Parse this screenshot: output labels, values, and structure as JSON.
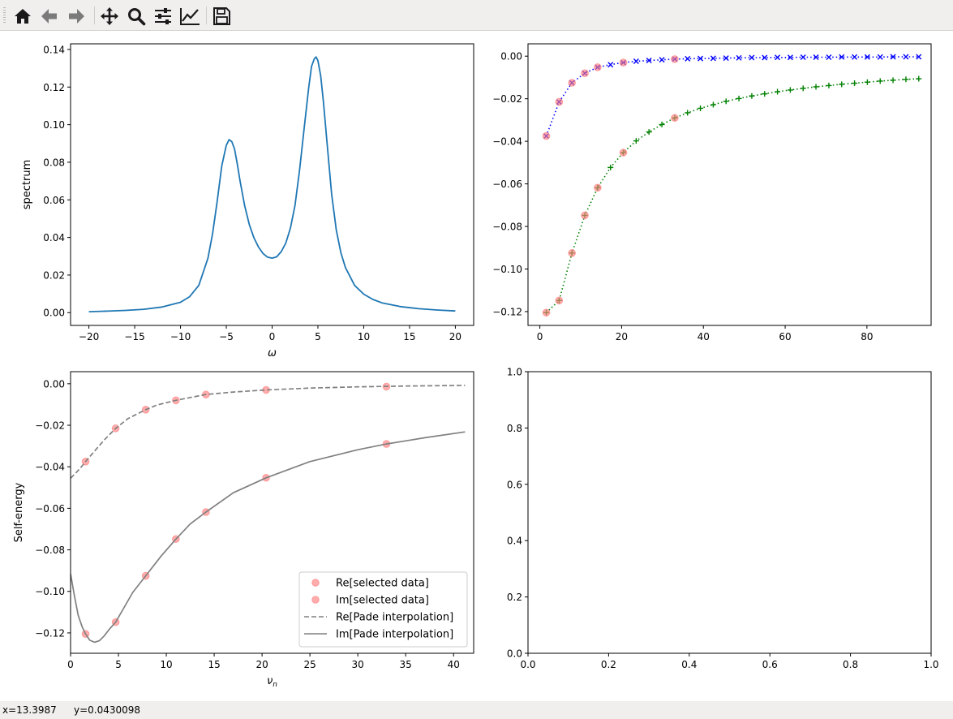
{
  "toolbar": {
    "buttons": [
      {
        "name": "home-icon"
      },
      {
        "name": "back-arrow-icon"
      },
      {
        "name": "forward-arrow-icon"
      },
      {
        "name": "pan-icon"
      },
      {
        "name": "zoom-icon"
      },
      {
        "name": "configure-subplots-icon"
      },
      {
        "name": "edit-axis-icon"
      },
      {
        "name": "save-icon"
      }
    ]
  },
  "status": {
    "x_readout": "x=13.3987",
    "y_readout": "y=0.0430098"
  },
  "colors": {
    "spectrum_line": "#1f77b4",
    "re_marker": "#0000ff",
    "im_marker": "#008000",
    "selected_marker": "#ff7f7f",
    "pade_line": "#808080"
  },
  "chart_data": [
    {
      "id": "spectrum",
      "type": "line",
      "title": "",
      "xlabel": "ω",
      "ylabel": "spectrum",
      "xlim": [
        -22,
        22
      ],
      "ylim": [
        -0.0068,
        0.143
      ],
      "xticks": [
        -20,
        -15,
        -10,
        -5,
        0,
        5,
        10,
        15,
        20
      ],
      "xtick_labels": [
        "−20",
        "−15",
        "−10",
        "−5",
        "0",
        "5",
        "10",
        "15",
        "20"
      ],
      "yticks": [
        0,
        0.02,
        0.04,
        0.06,
        0.08,
        0.1,
        0.12,
        0.14
      ],
      "ytick_labels": [
        "0.00",
        "0.02",
        "0.04",
        "0.06",
        "0.08",
        "0.10",
        "0.12",
        "0.14"
      ],
      "series": [
        {
          "style": "solid",
          "x": [
            -20,
            -18,
            -16,
            -14,
            -12,
            -10,
            -9,
            -8,
            -7,
            -6.5,
            -6,
            -5.5,
            -5,
            -4.7,
            -4.4,
            -4.1,
            -3.8,
            -3.5,
            -3,
            -2.5,
            -2,
            -1.5,
            -1,
            -0.5,
            0,
            0.5,
            1,
            1.5,
            2,
            2.5,
            3,
            3.5,
            4,
            4.3,
            4.6,
            4.8,
            5.0,
            5.3,
            5.6,
            6,
            6.5,
            7,
            7.5,
            8,
            9,
            10,
            11,
            12,
            14,
            16,
            18,
            20
          ],
          "y": [
            0.0005,
            0.0008,
            0.0012,
            0.0018,
            0.003,
            0.0055,
            0.0085,
            0.0145,
            0.029,
            0.042,
            0.059,
            0.078,
            0.089,
            0.092,
            0.091,
            0.087,
            0.079,
            0.07,
            0.057,
            0.047,
            0.04,
            0.035,
            0.0315,
            0.0295,
            0.029,
            0.0297,
            0.0325,
            0.037,
            0.045,
            0.057,
            0.076,
            0.098,
            0.12,
            0.131,
            0.135,
            0.136,
            0.134,
            0.126,
            0.112,
            0.09,
            0.063,
            0.044,
            0.032,
            0.024,
            0.0145,
            0.0098,
            0.007,
            0.0052,
            0.0032,
            0.0021,
            0.0014,
            0.0009
          ]
        }
      ]
    },
    {
      "id": "matsubara-data",
      "type": "scatter",
      "title": "",
      "xlabel": "",
      "ylabel": "",
      "xlim": [
        -2.9,
        95.7
      ],
      "ylim": [
        -0.1265,
        0.0058
      ],
      "xticks": [
        0,
        20,
        40,
        60,
        80
      ],
      "xtick_labels": [
        "0",
        "20",
        "40",
        "60",
        "80"
      ],
      "yticks": [
        -0.12,
        -0.1,
        -0.08,
        -0.06,
        -0.04,
        -0.02,
        0
      ],
      "ytick_labels": [
        "−0.12",
        "−0.10",
        "−0.08",
        "−0.06",
        "−0.04",
        "−0.02",
        "0.00"
      ],
      "series": [
        {
          "marker": "x",
          "line": "dotted",
          "color": "#0000ff",
          "x": [
            1.57,
            4.71,
            7.85,
            11.0,
            14.14,
            17.28,
            20.42,
            23.56,
            26.7,
            29.85,
            32.99,
            36.13,
            39.27,
            42.41,
            45.55,
            48.69,
            51.84,
            54.98,
            58.12,
            61.26,
            64.4,
            67.54,
            70.69,
            73.83,
            76.97,
            80.11,
            83.25,
            86.39,
            89.54,
            92.68
          ],
          "y": [
            -0.0375,
            -0.0215,
            -0.0125,
            -0.008,
            -0.0052,
            -0.004,
            -0.003,
            -0.0024,
            -0.002,
            -0.0017,
            -0.0014,
            -0.0012,
            -0.0011,
            -0.001,
            -0.0009,
            -0.0008,
            -0.0007,
            -0.0007,
            -0.0006,
            -0.0006,
            -0.0005,
            -0.0005,
            -0.0005,
            -0.0004,
            -0.0004,
            -0.0004,
            -0.0004,
            -0.0003,
            -0.0003,
            -0.0003
          ]
        },
        {
          "marker": "+",
          "line": "dotted",
          "color": "#008000",
          "x": [
            1.57,
            4.71,
            7.85,
            11.0,
            14.14,
            17.28,
            20.42,
            23.56,
            26.7,
            29.85,
            32.99,
            36.13,
            39.27,
            42.41,
            45.55,
            48.69,
            51.84,
            54.98,
            58.12,
            61.26,
            64.4,
            67.54,
            70.69,
            73.83,
            76.97,
            80.11,
            83.25,
            86.39,
            89.54,
            92.68
          ],
          "y": [
            -0.1205,
            -0.1148,
            -0.0925,
            -0.0748,
            -0.0618,
            -0.0523,
            -0.0453,
            -0.0398,
            -0.0356,
            -0.0321,
            -0.029,
            -0.0266,
            -0.0245,
            -0.0228,
            -0.0212,
            -0.0199,
            -0.0187,
            -0.0177,
            -0.0167,
            -0.0159,
            -0.0151,
            -0.0144,
            -0.0138,
            -0.0132,
            -0.0127,
            -0.0122,
            -0.0117,
            -0.0113,
            -0.0109,
            -0.0106
          ]
        },
        {
          "marker": "o",
          "color": "#ff7f7f",
          "x": [
            1.57,
            4.71,
            7.85,
            11.0,
            14.14,
            20.42,
            32.99
          ],
          "y": [
            -0.0375,
            -0.0215,
            -0.0125,
            -0.008,
            -0.0052,
            -0.003,
            -0.0014
          ]
        },
        {
          "marker": "o",
          "color": "#ff7f7f",
          "x": [
            1.57,
            4.71,
            7.85,
            11.0,
            14.14,
            20.42,
            32.99
          ],
          "y": [
            -0.1205,
            -0.1148,
            -0.0925,
            -0.0748,
            -0.0618,
            -0.0453,
            -0.029
          ]
        }
      ]
    },
    {
      "id": "self-energy",
      "type": "line",
      "title": "",
      "xlabel": "ν_n",
      "ylabel": "Self-energy",
      "xlim": [
        0,
        42.1
      ],
      "ylim": [
        -0.1298,
        0.0058
      ],
      "xticks": [
        0,
        5,
        10,
        15,
        20,
        25,
        30,
        35,
        40
      ],
      "xtick_labels": [
        "0",
        "5",
        "10",
        "15",
        "20",
        "25",
        "30",
        "35",
        "40"
      ],
      "yticks": [
        -0.12,
        -0.1,
        -0.08,
        -0.06,
        -0.04,
        -0.02,
        0
      ],
      "ytick_labels": [
        "−0.12",
        "−0.10",
        "−0.08",
        "−0.06",
        "−0.04",
        "−0.02",
        "0.00"
      ],
      "legend_position": "lower-right",
      "series": [
        {
          "name": "Re[selected data]",
          "marker": "o",
          "color": "#ff7f7f",
          "x": [
            1.57,
            4.71,
            7.85,
            11.0,
            14.14,
            20.42,
            32.99
          ],
          "y": [
            -0.0375,
            -0.0215,
            -0.0125,
            -0.008,
            -0.0052,
            -0.003,
            -0.0014
          ]
        },
        {
          "name": "Im[selected data]",
          "marker": "o",
          "color": "#ff7f7f",
          "x": [
            1.57,
            4.71,
            7.85,
            11.0,
            14.14,
            20.42,
            32.99
          ],
          "y": [
            -0.1205,
            -0.1148,
            -0.0925,
            -0.0748,
            -0.0618,
            -0.0453,
            -0.029
          ]
        },
        {
          "name": "Re[Pade interpolation]",
          "line": "dashed",
          "color": "#808080",
          "x": [
            0,
            0.5,
            1,
            1.57,
            2.5,
            3.5,
            4.71,
            6,
            7.85,
            9,
            11.0,
            14.14,
            17,
            20.42,
            25,
            30,
            35,
            41.2
          ],
          "y": [
            -0.0455,
            -0.0432,
            -0.0408,
            -0.0375,
            -0.0325,
            -0.0272,
            -0.0215,
            -0.0168,
            -0.0125,
            -0.0103,
            -0.008,
            -0.0052,
            -0.004,
            -0.003,
            -0.0021,
            -0.0015,
            -0.0011,
            -0.0008
          ]
        },
        {
          "name": "Im[Pade interpolation]",
          "line": "solid",
          "color": "#808080",
          "x": [
            0,
            0.4,
            0.8,
            1.2,
            1.57,
            2.0,
            2.5,
            3.0,
            3.5,
            4.0,
            4.71,
            5.5,
            6.5,
            7.85,
            9.5,
            11.0,
            12.5,
            14.14,
            17,
            20.42,
            25,
            30,
            32.99,
            37,
            41.2
          ],
          "y": [
            -0.0915,
            -0.102,
            -0.1115,
            -0.117,
            -0.1205,
            -0.1235,
            -0.1245,
            -0.1238,
            -0.1215,
            -0.1185,
            -0.1148,
            -0.1085,
            -0.1005,
            -0.0925,
            -0.0828,
            -0.0748,
            -0.0675,
            -0.0618,
            -0.0525,
            -0.0453,
            -0.0375,
            -0.0318,
            -0.029,
            -0.026,
            -0.0232
          ]
        }
      ]
    },
    {
      "id": "empty-axes",
      "type": "line",
      "title": "",
      "xlabel": "",
      "ylabel": "",
      "xlim": [
        0,
        1
      ],
      "ylim": [
        0,
        1
      ],
      "xticks": [
        0,
        0.2,
        0.4,
        0.6,
        0.8,
        1
      ],
      "xtick_labels": [
        "0.0",
        "0.2",
        "0.4",
        "0.6",
        "0.8",
        "1.0"
      ],
      "yticks": [
        0,
        0.2,
        0.4,
        0.6,
        0.8,
        1
      ],
      "ytick_labels": [
        "0.0",
        "0.2",
        "0.4",
        "0.6",
        "0.8",
        "1.0"
      ],
      "series": []
    }
  ]
}
